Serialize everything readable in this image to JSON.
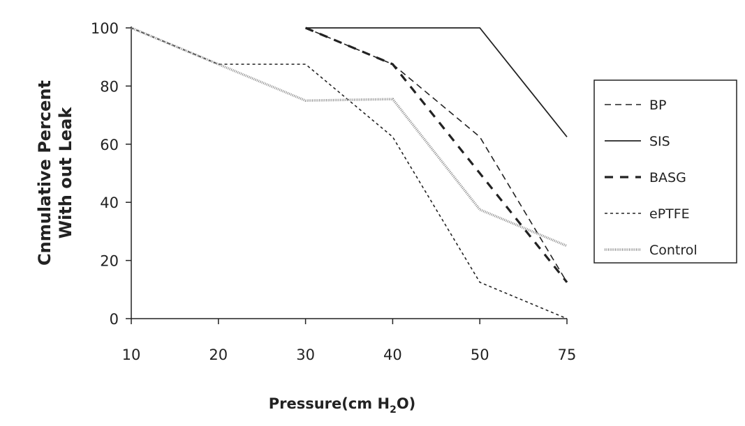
{
  "chart_data": {
    "type": "line",
    "title": "",
    "xlabel": "Pressure(cm H",
    "xlabel_sub": "2",
    "xlabel_end": "O)",
    "ylabel_line1": "Cnmulative Percent",
    "ylabel_line2": "With out Leak",
    "categories": [
      "10",
      "20",
      "30",
      "40",
      "50",
      "75"
    ],
    "yticks": [
      "0",
      "20",
      "40",
      "60",
      "80",
      "100"
    ],
    "ylim": [
      0,
      100
    ],
    "grid": false,
    "legend_position": "right",
    "series": [
      {
        "name": "BP",
        "style": "dashed-thin",
        "values": [
          null,
          null,
          100,
          87.5,
          62.5,
          12.5
        ]
      },
      {
        "name": "SIS",
        "style": "solid",
        "values": [
          null,
          null,
          100,
          100,
          100,
          62.5
        ]
      },
      {
        "name": "BASG",
        "style": "dashed-thick",
        "values": [
          null,
          null,
          100,
          87.5,
          50,
          12.5
        ]
      },
      {
        "name": "ePTFE",
        "style": "dotted",
        "values": [
          100,
          87.5,
          87.5,
          62.5,
          12.5,
          0
        ]
      },
      {
        "name": "Control",
        "style": "hatched-gray",
        "values": [
          100,
          87.5,
          75,
          75.5,
          37.5,
          25
        ]
      }
    ],
    "colors": {
      "lines": "#222222",
      "control": "#8a8a8a"
    }
  }
}
